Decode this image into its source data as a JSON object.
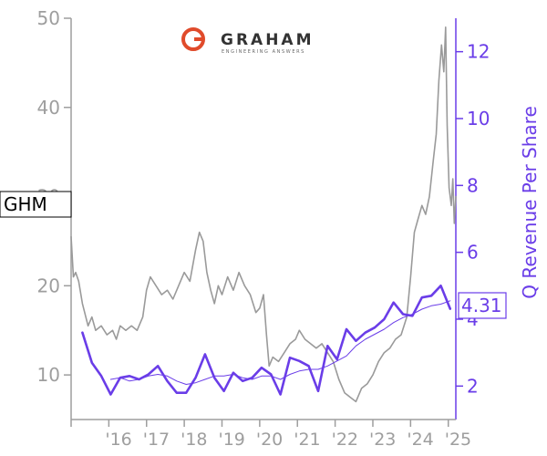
{
  "chart_data": {
    "type": "line",
    "ticker": "GHM",
    "logo": {
      "word": "GRAHAM",
      "tagline": "ENGINEERING ANSWERS",
      "color": "#e04b2b"
    },
    "x_tick_labels": [
      "'16",
      "'17",
      "'18",
      "'19",
      "'20",
      "'21",
      "'22",
      "'23",
      "'24",
      "'25"
    ],
    "xlim": [
      2015.0,
      2025.2
    ],
    "y_left": {
      "label": "",
      "lim": [
        5,
        50
      ],
      "ticks": [
        10,
        20,
        30,
        40,
        50
      ]
    },
    "y_right": {
      "label": "Q Revenue Per Share",
      "lim": [
        1,
        13
      ],
      "ticks": [
        2,
        4,
        6,
        8,
        10,
        12
      ]
    },
    "colors": {
      "price": "#9a9a9a",
      "revenue": "#6a3de8",
      "avg": "#6a3de8"
    },
    "current_value_label": "4.31",
    "series": [
      {
        "axis": "left",
        "style": "price",
        "points": [
          [
            2015.0,
            25.5
          ],
          [
            2015.06,
            21.0
          ],
          [
            2015.12,
            21.5
          ],
          [
            2015.2,
            20.5
          ],
          [
            2015.3,
            18.0
          ],
          [
            2015.45,
            15.5
          ],
          [
            2015.55,
            16.5
          ],
          [
            2015.65,
            15.0
          ],
          [
            2015.8,
            15.5
          ],
          [
            2015.95,
            14.5
          ],
          [
            2016.1,
            15.0
          ],
          [
            2016.2,
            14.0
          ],
          [
            2016.3,
            15.5
          ],
          [
            2016.45,
            15.0
          ],
          [
            2016.6,
            15.5
          ],
          [
            2016.75,
            15.0
          ],
          [
            2016.9,
            16.5
          ],
          [
            2017.0,
            19.5
          ],
          [
            2017.1,
            21.0
          ],
          [
            2017.25,
            20.0
          ],
          [
            2017.4,
            19.0
          ],
          [
            2017.55,
            19.5
          ],
          [
            2017.7,
            18.5
          ],
          [
            2017.85,
            20.0
          ],
          [
            2018.0,
            21.5
          ],
          [
            2018.15,
            20.5
          ],
          [
            2018.3,
            24.0
          ],
          [
            2018.4,
            26.0
          ],
          [
            2018.5,
            25.0
          ],
          [
            2018.6,
            21.5
          ],
          [
            2018.7,
            19.5
          ],
          [
            2018.8,
            18.0
          ],
          [
            2018.9,
            20.0
          ],
          [
            2019.0,
            19.0
          ],
          [
            2019.15,
            21.0
          ],
          [
            2019.3,
            19.5
          ],
          [
            2019.45,
            21.5
          ],
          [
            2019.6,
            20.0
          ],
          [
            2019.75,
            19.0
          ],
          [
            2019.9,
            17.0
          ],
          [
            2020.0,
            17.5
          ],
          [
            2020.1,
            19.0
          ],
          [
            2020.18,
            14.5
          ],
          [
            2020.25,
            11.0
          ],
          [
            2020.35,
            12.0
          ],
          [
            2020.5,
            11.5
          ],
          [
            2020.65,
            12.5
          ],
          [
            2020.8,
            13.5
          ],
          [
            2020.95,
            14.0
          ],
          [
            2021.05,
            15.0
          ],
          [
            2021.2,
            14.0
          ],
          [
            2021.35,
            13.5
          ],
          [
            2021.5,
            13.0
          ],
          [
            2021.65,
            13.5
          ],
          [
            2021.8,
            12.5
          ],
          [
            2021.95,
            11.5
          ],
          [
            2022.1,
            9.5
          ],
          [
            2022.25,
            8.0
          ],
          [
            2022.4,
            7.5
          ],
          [
            2022.55,
            7.0
          ],
          [
            2022.7,
            8.5
          ],
          [
            2022.85,
            9.0
          ],
          [
            2023.0,
            10.0
          ],
          [
            2023.15,
            11.5
          ],
          [
            2023.3,
            12.5
          ],
          [
            2023.45,
            13.0
          ],
          [
            2023.6,
            14.0
          ],
          [
            2023.75,
            14.5
          ],
          [
            2023.9,
            16.5
          ],
          [
            2024.0,
            21.0
          ],
          [
            2024.1,
            26.0
          ],
          [
            2024.2,
            27.5
          ],
          [
            2024.3,
            29.0
          ],
          [
            2024.4,
            28.0
          ],
          [
            2024.5,
            30.0
          ],
          [
            2024.6,
            34.0
          ],
          [
            2024.68,
            37.0
          ],
          [
            2024.75,
            43.0
          ],
          [
            2024.82,
            47.0
          ],
          [
            2024.88,
            44.0
          ],
          [
            2024.93,
            49.0
          ],
          [
            2024.97,
            38.0
          ],
          [
            2025.02,
            31.0
          ],
          [
            2025.08,
            29.0
          ],
          [
            2025.12,
            32.0
          ],
          [
            2025.16,
            27.0
          ],
          [
            2025.2,
            30.0
          ]
        ]
      },
      {
        "name": "Q Revenue Per Share",
        "axis": "right",
        "style": "revenue",
        "points": [
          [
            2015.3,
            3.6
          ],
          [
            2015.55,
            2.7
          ],
          [
            2015.8,
            2.3
          ],
          [
            2016.05,
            1.75
          ],
          [
            2016.3,
            2.25
          ],
          [
            2016.55,
            2.3
          ],
          [
            2016.8,
            2.2
          ],
          [
            2017.05,
            2.35
          ],
          [
            2017.3,
            2.6
          ],
          [
            2017.55,
            2.15
          ],
          [
            2017.8,
            1.8
          ],
          [
            2018.05,
            1.8
          ],
          [
            2018.3,
            2.25
          ],
          [
            2018.55,
            2.95
          ],
          [
            2018.8,
            2.25
          ],
          [
            2019.05,
            1.85
          ],
          [
            2019.3,
            2.4
          ],
          [
            2019.55,
            2.15
          ],
          [
            2019.8,
            2.25
          ],
          [
            2020.05,
            2.55
          ],
          [
            2020.3,
            2.35
          ],
          [
            2020.55,
            1.75
          ],
          [
            2020.8,
            2.85
          ],
          [
            2021.05,
            2.75
          ],
          [
            2021.3,
            2.6
          ],
          [
            2021.55,
            1.85
          ],
          [
            2021.8,
            3.2
          ],
          [
            2022.05,
            2.8
          ],
          [
            2022.3,
            3.7
          ],
          [
            2022.55,
            3.35
          ],
          [
            2022.8,
            3.6
          ],
          [
            2023.05,
            3.75
          ],
          [
            2023.3,
            4.0
          ],
          [
            2023.55,
            4.5
          ],
          [
            2023.8,
            4.15
          ],
          [
            2024.05,
            4.1
          ],
          [
            2024.3,
            4.65
          ],
          [
            2024.55,
            4.7
          ],
          [
            2024.8,
            5.0
          ],
          [
            2025.05,
            4.31
          ]
        ]
      },
      {
        "axis": "right",
        "style": "avg",
        "points": [
          [
            2016.05,
            2.2
          ],
          [
            2016.3,
            2.25
          ],
          [
            2016.55,
            2.15
          ],
          [
            2016.8,
            2.2
          ],
          [
            2017.05,
            2.3
          ],
          [
            2017.3,
            2.35
          ],
          [
            2017.55,
            2.3
          ],
          [
            2017.8,
            2.15
          ],
          [
            2018.05,
            2.05
          ],
          [
            2018.3,
            2.1
          ],
          [
            2018.55,
            2.2
          ],
          [
            2018.8,
            2.3
          ],
          [
            2019.05,
            2.3
          ],
          [
            2019.3,
            2.35
          ],
          [
            2019.55,
            2.25
          ],
          [
            2019.8,
            2.2
          ],
          [
            2020.05,
            2.3
          ],
          [
            2020.3,
            2.3
          ],
          [
            2020.55,
            2.2
          ],
          [
            2020.8,
            2.35
          ],
          [
            2021.05,
            2.45
          ],
          [
            2021.3,
            2.5
          ],
          [
            2021.55,
            2.5
          ],
          [
            2021.8,
            2.6
          ],
          [
            2022.05,
            2.75
          ],
          [
            2022.3,
            2.9
          ],
          [
            2022.55,
            3.2
          ],
          [
            2022.8,
            3.4
          ],
          [
            2023.05,
            3.55
          ],
          [
            2023.3,
            3.7
          ],
          [
            2023.55,
            3.9
          ],
          [
            2023.8,
            4.05
          ],
          [
            2024.05,
            4.15
          ],
          [
            2024.3,
            4.3
          ],
          [
            2024.55,
            4.4
          ],
          [
            2024.8,
            4.45
          ],
          [
            2025.05,
            4.55
          ]
        ]
      }
    ]
  }
}
